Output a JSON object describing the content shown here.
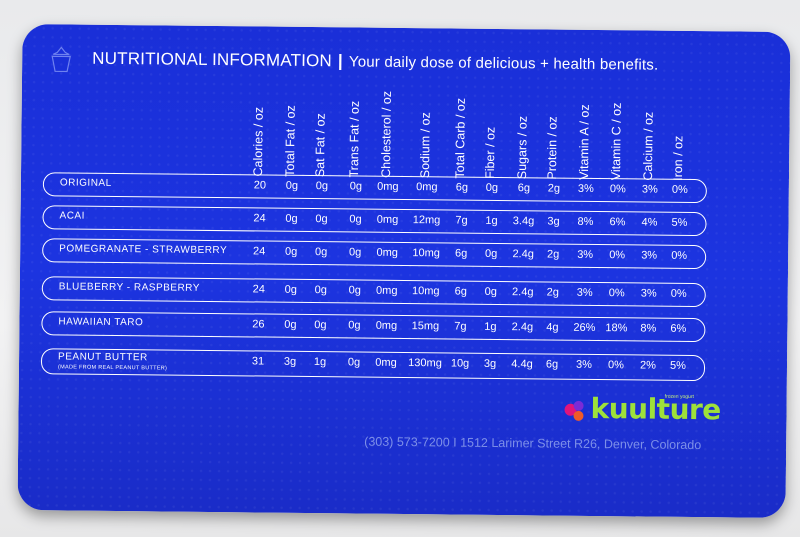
{
  "header": {
    "title": "NUTRITIONAL INFORMATION",
    "separator": "|",
    "subtitle": "Your daily dose of delicious + health benefits."
  },
  "columns": [
    "Calories / oz",
    "Total Fat / oz",
    "Sat Fat / oz",
    "Trans Fat / oz",
    "Cholesterol / oz",
    "Sodium / oz",
    "Total Carb / oz",
    "Fiber / oz",
    "Sugars / oz",
    "Protein / oz",
    "Vitamin A / oz",
    "Vitamin C / oz",
    "Calcium / oz",
    "Iron / oz"
  ],
  "rows": [
    {
      "name": "ORIGINAL",
      "note": "",
      "values": [
        "20",
        "0g",
        "0g",
        "0g",
        "0mg",
        "0mg",
        "6g",
        "0g",
        "6g",
        "2g",
        "3%",
        "0%",
        "3%",
        "0%"
      ]
    },
    {
      "name": "ACAI",
      "note": "",
      "values": [
        "24",
        "0g",
        "0g",
        "0g",
        "0mg",
        "12mg",
        "7g",
        "1g",
        "3.4g",
        "3g",
        "8%",
        "6%",
        "4%",
        "5%"
      ]
    },
    {
      "name": "POMEGRANATE - STRAWBERRY",
      "note": "",
      "values": [
        "24",
        "0g",
        "0g",
        "0g",
        "0mg",
        "10mg",
        "6g",
        "0g",
        "2.4g",
        "2g",
        "3%",
        "0%",
        "3%",
        "0%"
      ]
    },
    {
      "name": "BLUEBERRY - RASPBERRY",
      "note": "",
      "values": [
        "24",
        "0g",
        "0g",
        "0g",
        "0mg",
        "10mg",
        "6g",
        "0g",
        "2.4g",
        "2g",
        "3%",
        "0%",
        "3%",
        "0%"
      ]
    },
    {
      "name": "HAWAIIAN TARO",
      "note": "",
      "values": [
        "26",
        "0g",
        "0g",
        "0g",
        "0mg",
        "15mg",
        "7g",
        "1g",
        "2.4g",
        "4g",
        "26%",
        "18%",
        "8%",
        "6%"
      ]
    },
    {
      "name": "PEANUT BUTTER",
      "note": "(MADE FROM REAL PEANUT BUTTER)",
      "values": [
        "31",
        "3g",
        "1g",
        "0g",
        "0mg",
        "130mg",
        "10g",
        "3g",
        "4.4g",
        "6g",
        "3%",
        "0%",
        "2%",
        "5%"
      ]
    }
  ],
  "brand": {
    "name": "kuulture",
    "tagline": "frozen yogurt"
  },
  "footer": {
    "address": "(303) 573-7200 I 1512 Larimer Street R26, Denver, Colorado"
  },
  "colors": {
    "card": "#1c34e0",
    "text": "#ffffff",
    "brand_green": "#9ee03a",
    "address": "#7d8fe8"
  }
}
